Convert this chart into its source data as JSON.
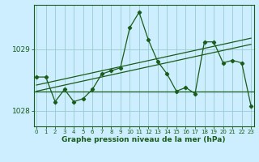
{
  "xlabel": "Graphe pression niveau de la mer (hPa)",
  "bg_color": "#cceeff",
  "grid_color": "#99cccc",
  "line_color": "#1a5c1a",
  "hours": [
    0,
    1,
    2,
    3,
    4,
    5,
    6,
    7,
    8,
    9,
    10,
    11,
    12,
    13,
    14,
    15,
    16,
    17,
    18,
    19,
    20,
    21,
    22,
    23
  ],
  "pressure": [
    1028.55,
    1028.55,
    1028.15,
    1028.35,
    1028.15,
    1028.2,
    1028.35,
    1028.6,
    1028.65,
    1028.7,
    1029.35,
    1029.6,
    1029.15,
    1028.8,
    1028.6,
    1028.32,
    1028.38,
    1028.28,
    1029.12,
    1029.12,
    1028.78,
    1028.82,
    1028.78,
    1028.08
  ],
  "trend1_x": [
    0,
    23
  ],
  "trend1_y": [
    1028.42,
    1029.18
  ],
  "trend2_x": [
    0,
    23
  ],
  "trend2_y": [
    1028.32,
    1029.08
  ],
  "hline_y": 1028.32,
  "ylim_min": 1027.75,
  "ylim_max": 1029.72,
  "yticks": [
    1028,
    1029
  ],
  "ytick_fontsize": 6.5,
  "xtick_fontsize": 5.0,
  "xlabel_fontsize": 6.5,
  "xticks": [
    0,
    1,
    2,
    3,
    4,
    5,
    6,
    7,
    8,
    9,
    10,
    11,
    12,
    13,
    14,
    15,
    16,
    17,
    18,
    19,
    20,
    21,
    22,
    23
  ]
}
